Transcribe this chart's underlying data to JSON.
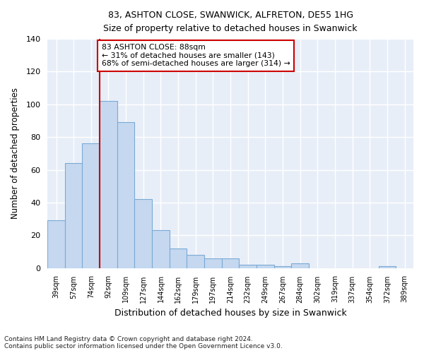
{
  "title1": "83, ASHTON CLOSE, SWANWICK, ALFRETON, DE55 1HG",
  "title2": "Size of property relative to detached houses in Swanwick",
  "xlabel": "Distribution of detached houses by size in Swanwick",
  "ylabel": "Number of detached properties",
  "categories": [
    "39sqm",
    "57sqm",
    "74sqm",
    "92sqm",
    "109sqm",
    "127sqm",
    "144sqm",
    "162sqm",
    "179sqm",
    "197sqm",
    "214sqm",
    "232sqm",
    "249sqm",
    "267sqm",
    "284sqm",
    "302sqm",
    "319sqm",
    "337sqm",
    "354sqm",
    "372sqm",
    "389sqm"
  ],
  "values": [
    29,
    64,
    76,
    102,
    89,
    42,
    23,
    12,
    8,
    6,
    6,
    2,
    2,
    1,
    3,
    0,
    0,
    0,
    0,
    1,
    0
  ],
  "bar_color": "#c5d8f0",
  "bar_edge_color": "#7aaad4",
  "vline_bin_index": 3,
  "annotation_line1": "83 ASHTON CLOSE: 88sqm",
  "annotation_line2": "← 31% of detached houses are smaller (143)",
  "annotation_line3": "68% of semi-detached houses are larger (314) →",
  "vline_color": "#cc0000",
  "annotation_edge_color": "#cc0000",
  "ylim": [
    0,
    140
  ],
  "yticks": [
    0,
    20,
    40,
    60,
    80,
    100,
    120,
    140
  ],
  "bg_color": "#e8eef8",
  "grid_color": "#ffffff",
  "footer1": "Contains HM Land Registry data © Crown copyright and database right 2024.",
  "footer2": "Contains public sector information licensed under the Open Government Licence v3.0."
}
